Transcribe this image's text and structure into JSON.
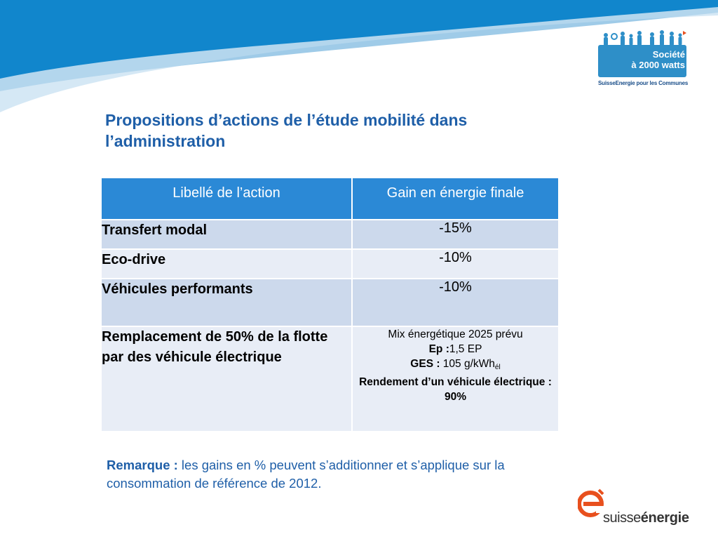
{
  "logo_top": {
    "line1": "Société",
    "line2": "à 2000 watts",
    "subtitle": "SuisseEnergie pour les Communes",
    "badge_color": "#2e8fc8"
  },
  "title": "Propositions d’actions de l’étude mobilité dans l’administration",
  "table": {
    "headers": [
      "Libellé de l’action",
      "Gain en énergie finale"
    ],
    "rows": [
      {
        "label": "Transfert modal",
        "gain": "-15%"
      },
      {
        "label": "Eco-drive",
        "gain": "-10%"
      },
      {
        "label": "Véhicules performants",
        "gain": "-10%"
      },
      {
        "label": "Remplacement de 50% de la flotte par des véhicule électrique",
        "gain_detail": {
          "line1": "Mix énergétique 2025 prévu",
          "ep_label": "Ep :",
          "ep_value": "1,5 EP",
          "ges_label": "GES :",
          "ges_value": " 105 g/kWh",
          "ges_sub": "él",
          "rendement": "Rendement d’un véhicule électrique : 90%"
        }
      }
    ],
    "header_color": "#2b89d6",
    "row_color_dark": "#ccd9ec",
    "row_color_light": "#e8edf6"
  },
  "remark": {
    "label": "Remarque :",
    "text": " les gains en % peuvent s’additionner et s’applique sur la consommation de référence de 2012."
  },
  "logo_bottom": {
    "word1": "suisse",
    "word2": "énergie",
    "accent_color": "#e8501e"
  },
  "colors": {
    "title": "#1f5fa8",
    "banner_dark": "#1186cc",
    "banner_light": "#9fcbe8"
  }
}
